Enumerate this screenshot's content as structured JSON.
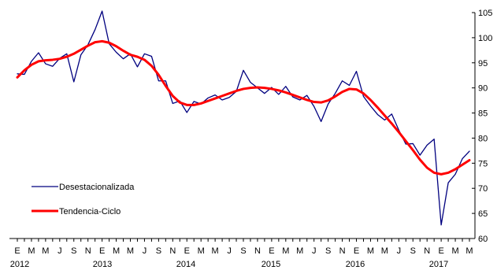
{
  "chart_data": {
    "type": "line",
    "title": "",
    "xlabel": "",
    "ylabel": "",
    "ylim": [
      60,
      105
    ],
    "y_ticks": [
      60,
      65,
      70,
      75,
      80,
      85,
      90,
      95,
      100,
      105
    ],
    "y_axis_side": "right",
    "grid": false,
    "legend_placement": "left-lower-inside",
    "month_tick_labels": [
      "E",
      "M",
      "M",
      "J",
      "S",
      "N"
    ],
    "year_labels": [
      "2012",
      "2013",
      "2014",
      "2015",
      "2016",
      "2017"
    ],
    "x_start": "2012-01",
    "x_end": "2017-03",
    "series": [
      {
        "name": "Desestacionalizada",
        "color": "#00007f",
        "values": [
          92.8,
          92.7,
          95.3,
          97.0,
          94.8,
          94.3,
          95.9,
          96.8,
          91.2,
          96.6,
          98.6,
          101.6,
          105.3,
          98.8,
          97.1,
          95.8,
          96.8,
          94.2,
          96.8,
          96.3,
          91.4,
          91.4,
          86.9,
          87.4,
          85.1,
          87.3,
          86.8,
          88.0,
          88.6,
          87.6,
          88.1,
          89.3,
          93.5,
          91.1,
          90.0,
          88.9,
          90.1,
          88.7,
          90.3,
          88.2,
          87.6,
          88.5,
          86.3,
          83.3,
          86.8,
          88.9,
          91.4,
          90.5,
          93.3,
          88.3,
          86.4,
          84.7,
          83.6,
          84.8,
          81.6,
          78.8,
          78.9,
          76.6,
          78.6,
          79.8,
          62.7,
          71.1,
          72.8,
          75.9,
          77.4
        ]
      },
      {
        "name": "Tendencia-Ciclo",
        "color": "#ff0000",
        "values": [
          92.1,
          93.5,
          94.6,
          95.3,
          95.5,
          95.6,
          95.8,
          96.2,
          96.8,
          97.6,
          98.4,
          99.1,
          99.3,
          99.0,
          98.3,
          97.4,
          96.6,
          96.2,
          95.6,
          94.4,
          92.6,
          90.4,
          88.4,
          87.1,
          86.6,
          86.6,
          86.9,
          87.4,
          87.9,
          88.4,
          88.9,
          89.4,
          89.8,
          90.0,
          90.1,
          90.0,
          89.8,
          89.5,
          89.1,
          88.6,
          88.1,
          87.6,
          87.2,
          87.1,
          87.5,
          88.3,
          89.2,
          89.8,
          89.7,
          88.9,
          87.6,
          86.1,
          84.5,
          82.9,
          81.2,
          79.4,
          77.6,
          75.7,
          74.1,
          73.1,
          72.8,
          73.1,
          73.8,
          74.7,
          75.6
        ]
      }
    ]
  }
}
